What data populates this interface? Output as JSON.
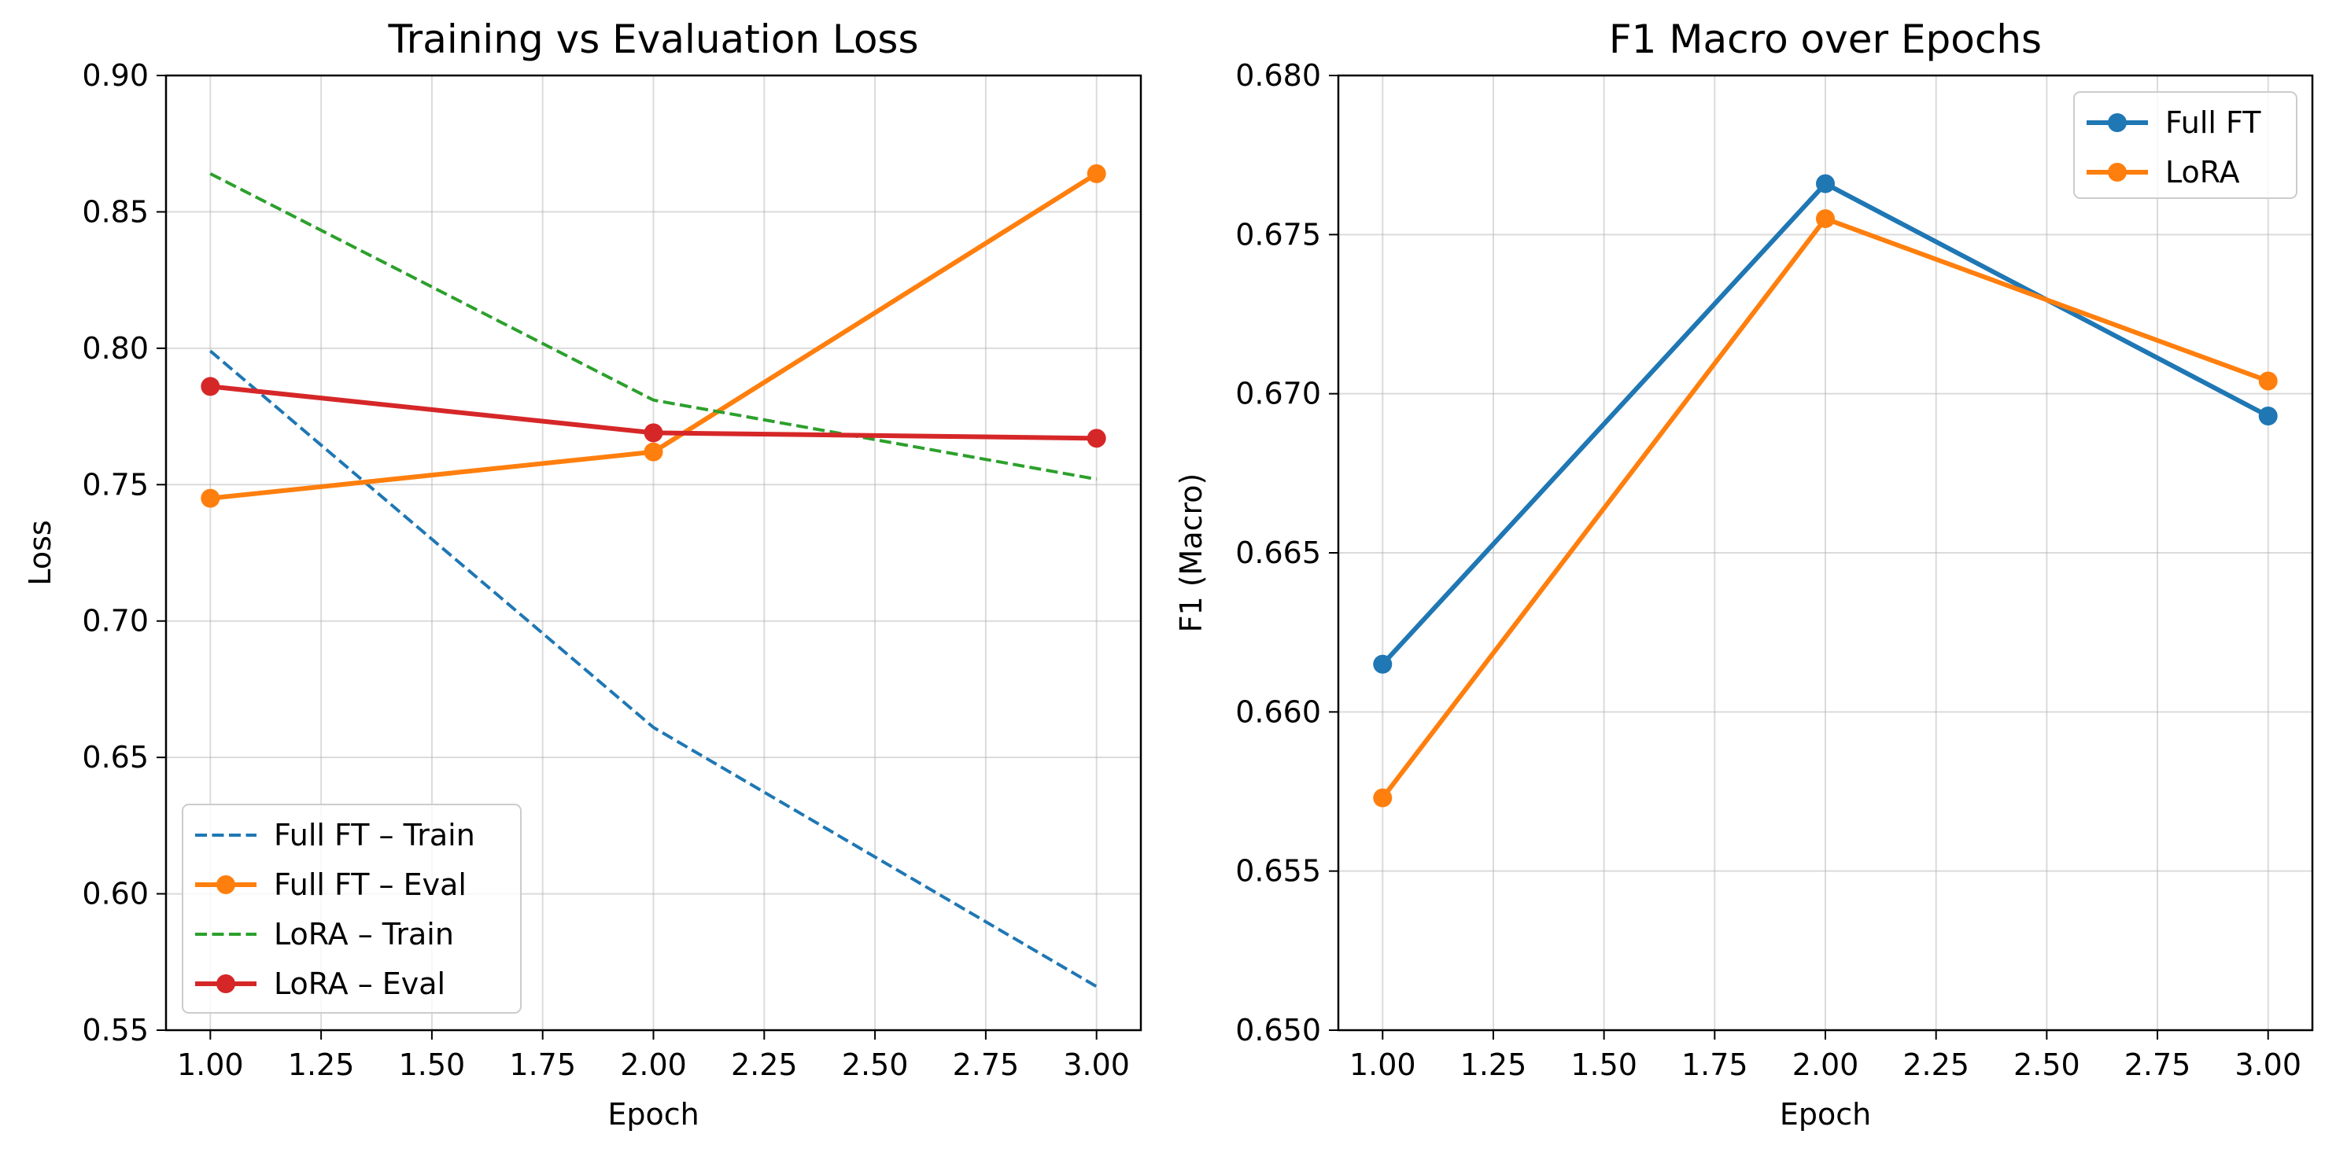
{
  "chart_data": [
    {
      "type": "line",
      "title": "Training vs Evaluation Loss",
      "xlabel": "Epoch",
      "ylabel": "Loss",
      "xlim": [
        0.9,
        3.1
      ],
      "ylim": [
        0.55,
        0.9
      ],
      "xticks": [
        1.0,
        1.25,
        1.5,
        1.75,
        2.0,
        2.25,
        2.5,
        2.75,
        3.0
      ],
      "xtick_labels": [
        "1.00",
        "1.25",
        "1.50",
        "1.75",
        "2.00",
        "2.25",
        "2.50",
        "2.75",
        "3.00"
      ],
      "yticks": [
        0.55,
        0.6,
        0.65,
        0.7,
        0.75,
        0.8,
        0.85,
        0.9
      ],
      "ytick_labels": [
        "0.55",
        "0.60",
        "0.65",
        "0.70",
        "0.75",
        "0.80",
        "0.85",
        "0.90"
      ],
      "grid": true,
      "legend_position": "lower-left",
      "x": [
        1,
        2,
        3
      ],
      "series": [
        {
          "name": "Full FT – Train",
          "values": [
            0.799,
            0.661,
            0.566
          ],
          "color": "#1f77b4",
          "style": "dashed",
          "marker": false
        },
        {
          "name": "Full FT – Eval",
          "values": [
            0.745,
            0.762,
            0.864
          ],
          "color": "#ff7f0e",
          "style": "solid",
          "marker": true
        },
        {
          "name": "LoRA – Train",
          "values": [
            0.864,
            0.781,
            0.752
          ],
          "color": "#2ca02c",
          "style": "dashed",
          "marker": false
        },
        {
          "name": "LoRA – Eval",
          "values": [
            0.786,
            0.769,
            0.767
          ],
          "color": "#d62728",
          "style": "solid",
          "marker": true
        }
      ]
    },
    {
      "type": "line",
      "title": "F1 Macro over Epochs",
      "xlabel": "Epoch",
      "ylabel": "F1 (Macro)",
      "xlim": [
        0.9,
        3.1
      ],
      "ylim": [
        0.65,
        0.68
      ],
      "xticks": [
        1.0,
        1.25,
        1.5,
        1.75,
        2.0,
        2.25,
        2.5,
        2.75,
        3.0
      ],
      "xtick_labels": [
        "1.00",
        "1.25",
        "1.50",
        "1.75",
        "2.00",
        "2.25",
        "2.50",
        "2.75",
        "3.00"
      ],
      "yticks": [
        0.65,
        0.655,
        0.66,
        0.665,
        0.67,
        0.675,
        0.68
      ],
      "ytick_labels": [
        "0.650",
        "0.655",
        "0.660",
        "0.665",
        "0.670",
        "0.675",
        "0.680"
      ],
      "grid": true,
      "legend_position": "upper-right",
      "x": [
        1,
        2,
        3
      ],
      "series": [
        {
          "name": "Full FT",
          "values": [
            0.6615,
            0.6766,
            0.6693
          ],
          "color": "#1f77b4",
          "style": "solid",
          "marker": true
        },
        {
          "name": "LoRA",
          "values": [
            0.6573,
            0.6755,
            0.6704
          ],
          "color": "#ff7f0e",
          "style": "solid",
          "marker": true
        }
      ]
    }
  ]
}
